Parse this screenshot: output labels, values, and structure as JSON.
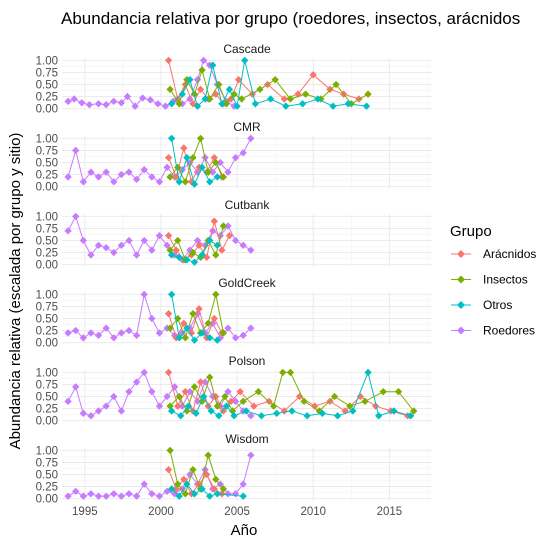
{
  "chart_data": {
    "type": "line",
    "title": "Abundancia relativa por grupo (roedores, insectos, arácnidos",
    "xlabel": "Año",
    "ylabel": "Abundancia relativa (escalada por grupo y sitio)",
    "xlim": [
      1993.5,
      2017.8
    ],
    "ylim": [
      -0.05,
      1.05
    ],
    "x_ticks": [
      1995,
      2000,
      2005,
      2010,
      2015
    ],
    "y_ticks": [
      0.0,
      0.25,
      0.5,
      0.75,
      1.0
    ],
    "y_tick_labels": [
      "0.00",
      "0.25",
      "0.50",
      "0.75",
      "1.00"
    ],
    "x_tick_labels": [
      "1995",
      "2000",
      "2005",
      "2010",
      "2015"
    ],
    "grid": true,
    "legend": {
      "title": "Grupo",
      "placement": "right",
      "entries": [
        "Arácnidos",
        "Insectos",
        "Otros",
        "Roedores"
      ]
    },
    "colors": {
      "Arácnidos": "#F8766D",
      "Insectos": "#7CAE00",
      "Otros": "#00BFC4",
      "Roedores": "#C77CFF"
    },
    "panels": [
      {
        "name": "Cascade",
        "series": [
          {
            "name": "Roedores",
            "x": [
              1993.9,
              1994.3,
              1994.8,
              1995.3,
              1995.9,
              1996.4,
              1996.9,
              1997.4,
              1997.8,
              1998.3,
              1998.8,
              1999.3,
              1999.8,
              2000.3,
              2000.8,
              2001.4,
              2001.9,
              2002.4,
              2002.8,
              2003.2,
              2003.7,
              2004.3,
              2004.8
            ],
            "y": [
              0.15,
              0.2,
              0.12,
              0.08,
              0.1,
              0.08,
              0.15,
              0.12,
              0.25,
              0.05,
              0.22,
              0.18,
              0.1,
              0.05,
              0.15,
              0.1,
              0.2,
              0.6,
              1.0,
              0.9,
              0.5,
              0.15,
              0.05
            ]
          },
          {
            "name": "Arácnidos",
            "x": [
              2000.5,
              2001.1,
              2001.6,
              2002.1,
              2002.6,
              2003.1,
              2003.6,
              2004.1,
              2004.6,
              2005.1,
              2006.0,
              2007.0,
              2008.1,
              2009.0,
              2010.0,
              2011.1,
              2012.0,
              2013.0
            ],
            "y": [
              1.0,
              0.2,
              0.5,
              0.1,
              0.4,
              0.2,
              0.3,
              0.1,
              0.2,
              0.6,
              0.3,
              0.5,
              0.2,
              0.3,
              0.7,
              0.4,
              0.3,
              0.2
            ]
          },
          {
            "name": "Insectos",
            "x": [
              2000.6,
              2001.2,
              2001.7,
              2002.2,
              2002.7,
              2003.2,
              2003.8,
              2004.3,
              2004.8,
              2005.3,
              2006.5,
              2007.5,
              2008.5,
              2009.5,
              2010.5,
              2011.5,
              2012.5,
              2013.6
            ],
            "y": [
              0.4,
              0.1,
              0.6,
              0.3,
              0.8,
              0.2,
              0.5,
              0.1,
              0.3,
              0.2,
              0.4,
              0.6,
              0.2,
              0.3,
              0.2,
              0.5,
              0.1,
              0.3
            ]
          },
          {
            "name": "Otros",
            "x": [
              2000.7,
              2001.4,
              2001.9,
              2002.4,
              2002.9,
              2003.4,
              2004.0,
              2004.5,
              2005.0,
              2005.5,
              2006.2,
              2007.2,
              2008.2,
              2009.3,
              2010.3,
              2011.3,
              2012.3,
              2013.5
            ],
            "y": [
              0.1,
              0.3,
              0.6,
              0.05,
              0.2,
              0.9,
              0.1,
              0.4,
              0.05,
              1.0,
              0.1,
              0.2,
              0.05,
              0.1,
              0.2,
              0.05,
              0.1,
              0.05
            ]
          }
        ]
      },
      {
        "name": "CMR",
        "series": [
          {
            "name": "Roedores",
            "x": [
              1993.9,
              1994.4,
              1994.9,
              1995.4,
              1995.9,
              1996.4,
              1996.9,
              1997.4,
              1997.9,
              1998.4,
              1998.9,
              1999.4,
              1999.9,
              2000.4,
              2000.9,
              2001.4,
              2001.9,
              2002.4,
              2002.9,
              2003.4,
              2003.9,
              2004.4,
              2004.9,
              2005.4,
              2005.9
            ],
            "y": [
              0.2,
              0.75,
              0.1,
              0.3,
              0.2,
              0.3,
              0.1,
              0.25,
              0.3,
              0.15,
              0.35,
              0.2,
              0.1,
              0.4,
              0.2,
              0.35,
              0.5,
              0.3,
              0.6,
              0.3,
              0.5,
              0.3,
              0.6,
              0.7,
              1.0
            ]
          },
          {
            "name": "Arácnidos",
            "x": [
              2000.5,
              2001.0,
              2001.5,
              2002.0,
              2002.5,
              2003.0,
              2003.5,
              2004.0
            ],
            "y": [
              0.6,
              0.2,
              0.8,
              0.1,
              0.4,
              0.3,
              0.6,
              0.2
            ]
          },
          {
            "name": "Insectos",
            "x": [
              2000.6,
              2001.1,
              2001.6,
              2002.1,
              2002.6,
              2003.1,
              2003.6,
              2004.1
            ],
            "y": [
              0.2,
              0.4,
              0.1,
              0.6,
              1.0,
              0.3,
              0.5,
              0.2
            ]
          },
          {
            "name": "Otros",
            "x": [
              2000.7,
              2001.2,
              2001.7,
              2002.2,
              2002.7,
              2003.2,
              2003.7
            ],
            "y": [
              1.0,
              0.1,
              0.6,
              0.05,
              0.4,
              0.1,
              0.2
            ]
          }
        ]
      },
      {
        "name": "Cutbank",
        "series": [
          {
            "name": "Roedores",
            "x": [
              1993.9,
              1994.4,
              1994.9,
              1995.4,
              1995.9,
              1996.4,
              1996.9,
              1997.4,
              1997.9,
              1998.4,
              1998.9,
              1999.4,
              1999.9,
              2000.4,
              2000.9,
              2001.4,
              2001.9,
              2002.4,
              2002.9,
              2003.4,
              2003.9,
              2004.4,
              2004.9,
              2005.4,
              2005.9
            ],
            "y": [
              0.7,
              1.0,
              0.5,
              0.2,
              0.4,
              0.35,
              0.25,
              0.4,
              0.5,
              0.2,
              0.5,
              0.3,
              0.6,
              0.4,
              0.2,
              0.1,
              0.3,
              0.5,
              0.4,
              0.7,
              0.6,
              0.8,
              0.5,
              0.4,
              0.3
            ]
          },
          {
            "name": "Arácnidos",
            "x": [
              2000.5,
              2001.0,
              2001.5,
              2002.0,
              2002.5,
              2003.0,
              2003.5,
              2004.0,
              2004.5
            ],
            "y": [
              0.6,
              0.3,
              0.1,
              0.2,
              0.4,
              0.15,
              0.9,
              0.3,
              0.6
            ]
          },
          {
            "name": "Insectos",
            "x": [
              2000.6,
              2001.1,
              2001.6,
              2002.1,
              2002.6,
              2003.1,
              2003.6,
              2004.1
            ],
            "y": [
              0.3,
              0.5,
              0.1,
              0.25,
              0.15,
              0.5,
              0.2,
              0.8
            ]
          },
          {
            "name": "Otros",
            "x": [
              2000.7,
              2001.2,
              2001.7,
              2002.2,
              2002.7,
              2003.2,
              2003.7
            ],
            "y": [
              0.2,
              0.15,
              0.1,
              0.05,
              0.2,
              0.5,
              0.4
            ]
          }
        ]
      },
      {
        "name": "GoldCreek",
        "series": [
          {
            "name": "Roedores",
            "x": [
              1993.9,
              1994.4,
              1994.9,
              1995.4,
              1995.9,
              1996.4,
              1996.9,
              1997.4,
              1997.9,
              1998.4,
              1998.9,
              1999.4,
              1999.9,
              2000.4,
              2000.9,
              2001.4,
              2001.9,
              2002.4,
              2002.9,
              2003.4,
              2003.9,
              2004.4,
              2004.9,
              2005.4,
              2005.9
            ],
            "y": [
              0.2,
              0.25,
              0.1,
              0.2,
              0.15,
              0.3,
              0.1,
              0.2,
              0.25,
              0.15,
              1.0,
              0.5,
              0.2,
              0.3,
              0.15,
              0.2,
              0.3,
              0.6,
              0.2,
              0.4,
              0.1,
              0.3,
              0.1,
              0.15,
              0.3
            ]
          },
          {
            "name": "Arácnidos",
            "x": [
              2000.5,
              2001.0,
              2001.5,
              2002.0,
              2002.5,
              2003.0,
              2003.5,
              2004.0
            ],
            "y": [
              0.6,
              0.1,
              0.4,
              0.2,
              0.7,
              0.1,
              0.5,
              0.2
            ]
          },
          {
            "name": "Insectos",
            "x": [
              2000.6,
              2001.1,
              2001.6,
              2002.1,
              2002.6,
              2003.1,
              2003.6,
              2004.1
            ],
            "y": [
              0.3,
              0.5,
              0.1,
              0.6,
              0.2,
              0.4,
              1.0,
              0.2
            ]
          },
          {
            "name": "Otros",
            "x": [
              2000.7,
              2001.2,
              2001.7,
              2002.2,
              2002.7,
              2003.2,
              2003.7
            ],
            "y": [
              1.0,
              0.1,
              0.3,
              0.05,
              0.2,
              0.1,
              0.05
            ]
          }
        ]
      },
      {
        "name": "Polson",
        "series": [
          {
            "name": "Roedores",
            "x": [
              1993.9,
              1994.4,
              1994.9,
              1995.4,
              1995.9,
              1996.4,
              1996.9,
              1997.4,
              1997.9,
              1998.4,
              1998.9,
              1999.4,
              1999.9,
              2000.4,
              2000.9,
              2001.4,
              2001.9,
              2002.4,
              2002.9,
              2003.4,
              2003.9,
              2004.4,
              2004.9,
              2005.4,
              2005.9
            ],
            "y": [
              0.4,
              0.7,
              0.15,
              0.1,
              0.2,
              0.3,
              0.5,
              0.2,
              0.6,
              0.8,
              1.0,
              0.6,
              0.3,
              0.5,
              0.7,
              0.3,
              0.6,
              0.4,
              0.8,
              0.5,
              0.3,
              0.6,
              0.4,
              0.2,
              0.1
            ]
          },
          {
            "name": "Arácnidos",
            "x": [
              2000.5,
              2001.1,
              2001.6,
              2002.1,
              2002.6,
              2003.1,
              2003.6,
              2004.1,
              2004.6,
              2005.2,
              2006.1,
              2007.1,
              2008.1,
              2009.1,
              2010.1,
              2011.1,
              2012.1,
              2013.1,
              2014.1,
              2015.1,
              2016.2
            ],
            "y": [
              1.0,
              0.3,
              0.6,
              0.2,
              0.8,
              0.3,
              0.5,
              0.2,
              0.4,
              0.6,
              0.3,
              0.4,
              0.2,
              0.5,
              0.3,
              0.4,
              0.2,
              0.5,
              0.3,
              0.2,
              0.1
            ]
          },
          {
            "name": "Insectos",
            "x": [
              2000.6,
              2001.2,
              2001.7,
              2002.2,
              2002.7,
              2003.2,
              2003.7,
              2004.2,
              2004.7,
              2005.4,
              2006.4,
              2007.4,
              2008.0,
              2008.5,
              2009.4,
              2010.4,
              2011.4,
              2012.4,
              2013.4,
              2014.6,
              2015.6,
              2016.6
            ],
            "y": [
              0.3,
              0.5,
              0.2,
              0.7,
              0.4,
              0.9,
              0.3,
              0.5,
              0.2,
              0.4,
              0.6,
              0.3,
              1.0,
              1.0,
              0.4,
              0.2,
              0.5,
              0.3,
              0.4,
              0.6,
              0.6,
              0.2
            ]
          },
          {
            "name": "Otros",
            "x": [
              2000.7,
              2001.3,
              2001.8,
              2002.3,
              2002.8,
              2003.3,
              2003.8,
              2004.3,
              2004.8,
              2005.6,
              2006.6,
              2007.6,
              2008.6,
              2009.6,
              2010.6,
              2011.6,
              2012.6,
              2013.6,
              2014.3,
              2015.3,
              2016.4
            ],
            "y": [
              0.2,
              0.1,
              0.3,
              0.15,
              0.5,
              0.2,
              0.1,
              0.3,
              0.1,
              0.2,
              0.1,
              0.15,
              0.2,
              0.1,
              0.15,
              0.1,
              0.2,
              1.0,
              0.1,
              0.2,
              0.1
            ]
          }
        ]
      },
      {
        "name": "Wisdom",
        "series": [
          {
            "name": "Roedores",
            "x": [
              1993.9,
              1994.4,
              1994.9,
              1995.4,
              1995.9,
              1996.4,
              1996.9,
              1997.4,
              1997.9,
              1998.4,
              1998.9,
              1999.4,
              1999.9,
              2000.4,
              2000.9,
              2001.4,
              2001.9,
              2002.4,
              2002.9,
              2003.4,
              2003.9,
              2004.4,
              2004.9,
              2005.4,
              2005.9
            ],
            "y": [
              0.05,
              0.15,
              0.05,
              0.1,
              0.05,
              0.05,
              0.1,
              0.05,
              0.1,
              0.05,
              0.3,
              0.1,
              0.05,
              0.15,
              0.1,
              0.2,
              0.5,
              0.3,
              0.6,
              0.2,
              0.3,
              0.1,
              0.1,
              0.3,
              0.9
            ]
          },
          {
            "name": "Arácnidos",
            "x": [
              2000.5,
              2001.0,
              2001.5,
              2002.0,
              2002.5,
              2003.0,
              2003.5,
              2004.0
            ],
            "y": [
              0.6,
              0.2,
              0.4,
              0.1,
              0.3,
              0.5,
              0.2,
              0.1
            ]
          },
          {
            "name": "Insectos",
            "x": [
              2000.6,
              2001.1,
              2001.6,
              2002.1,
              2002.6,
              2003.1,
              2003.6,
              2004.1
            ],
            "y": [
              1.0,
              0.3,
              0.1,
              0.6,
              0.2,
              0.9,
              0.4,
              0.2
            ]
          },
          {
            "name": "Otros",
            "x": [
              2000.7,
              2001.2,
              2001.7,
              2002.2,
              2002.7,
              2003.2,
              2003.7,
              2005.4
            ],
            "y": [
              0.2,
              0.05,
              0.3,
              0.1,
              0.2,
              0.05,
              0.1,
              0.05
            ]
          }
        ]
      }
    ]
  }
}
